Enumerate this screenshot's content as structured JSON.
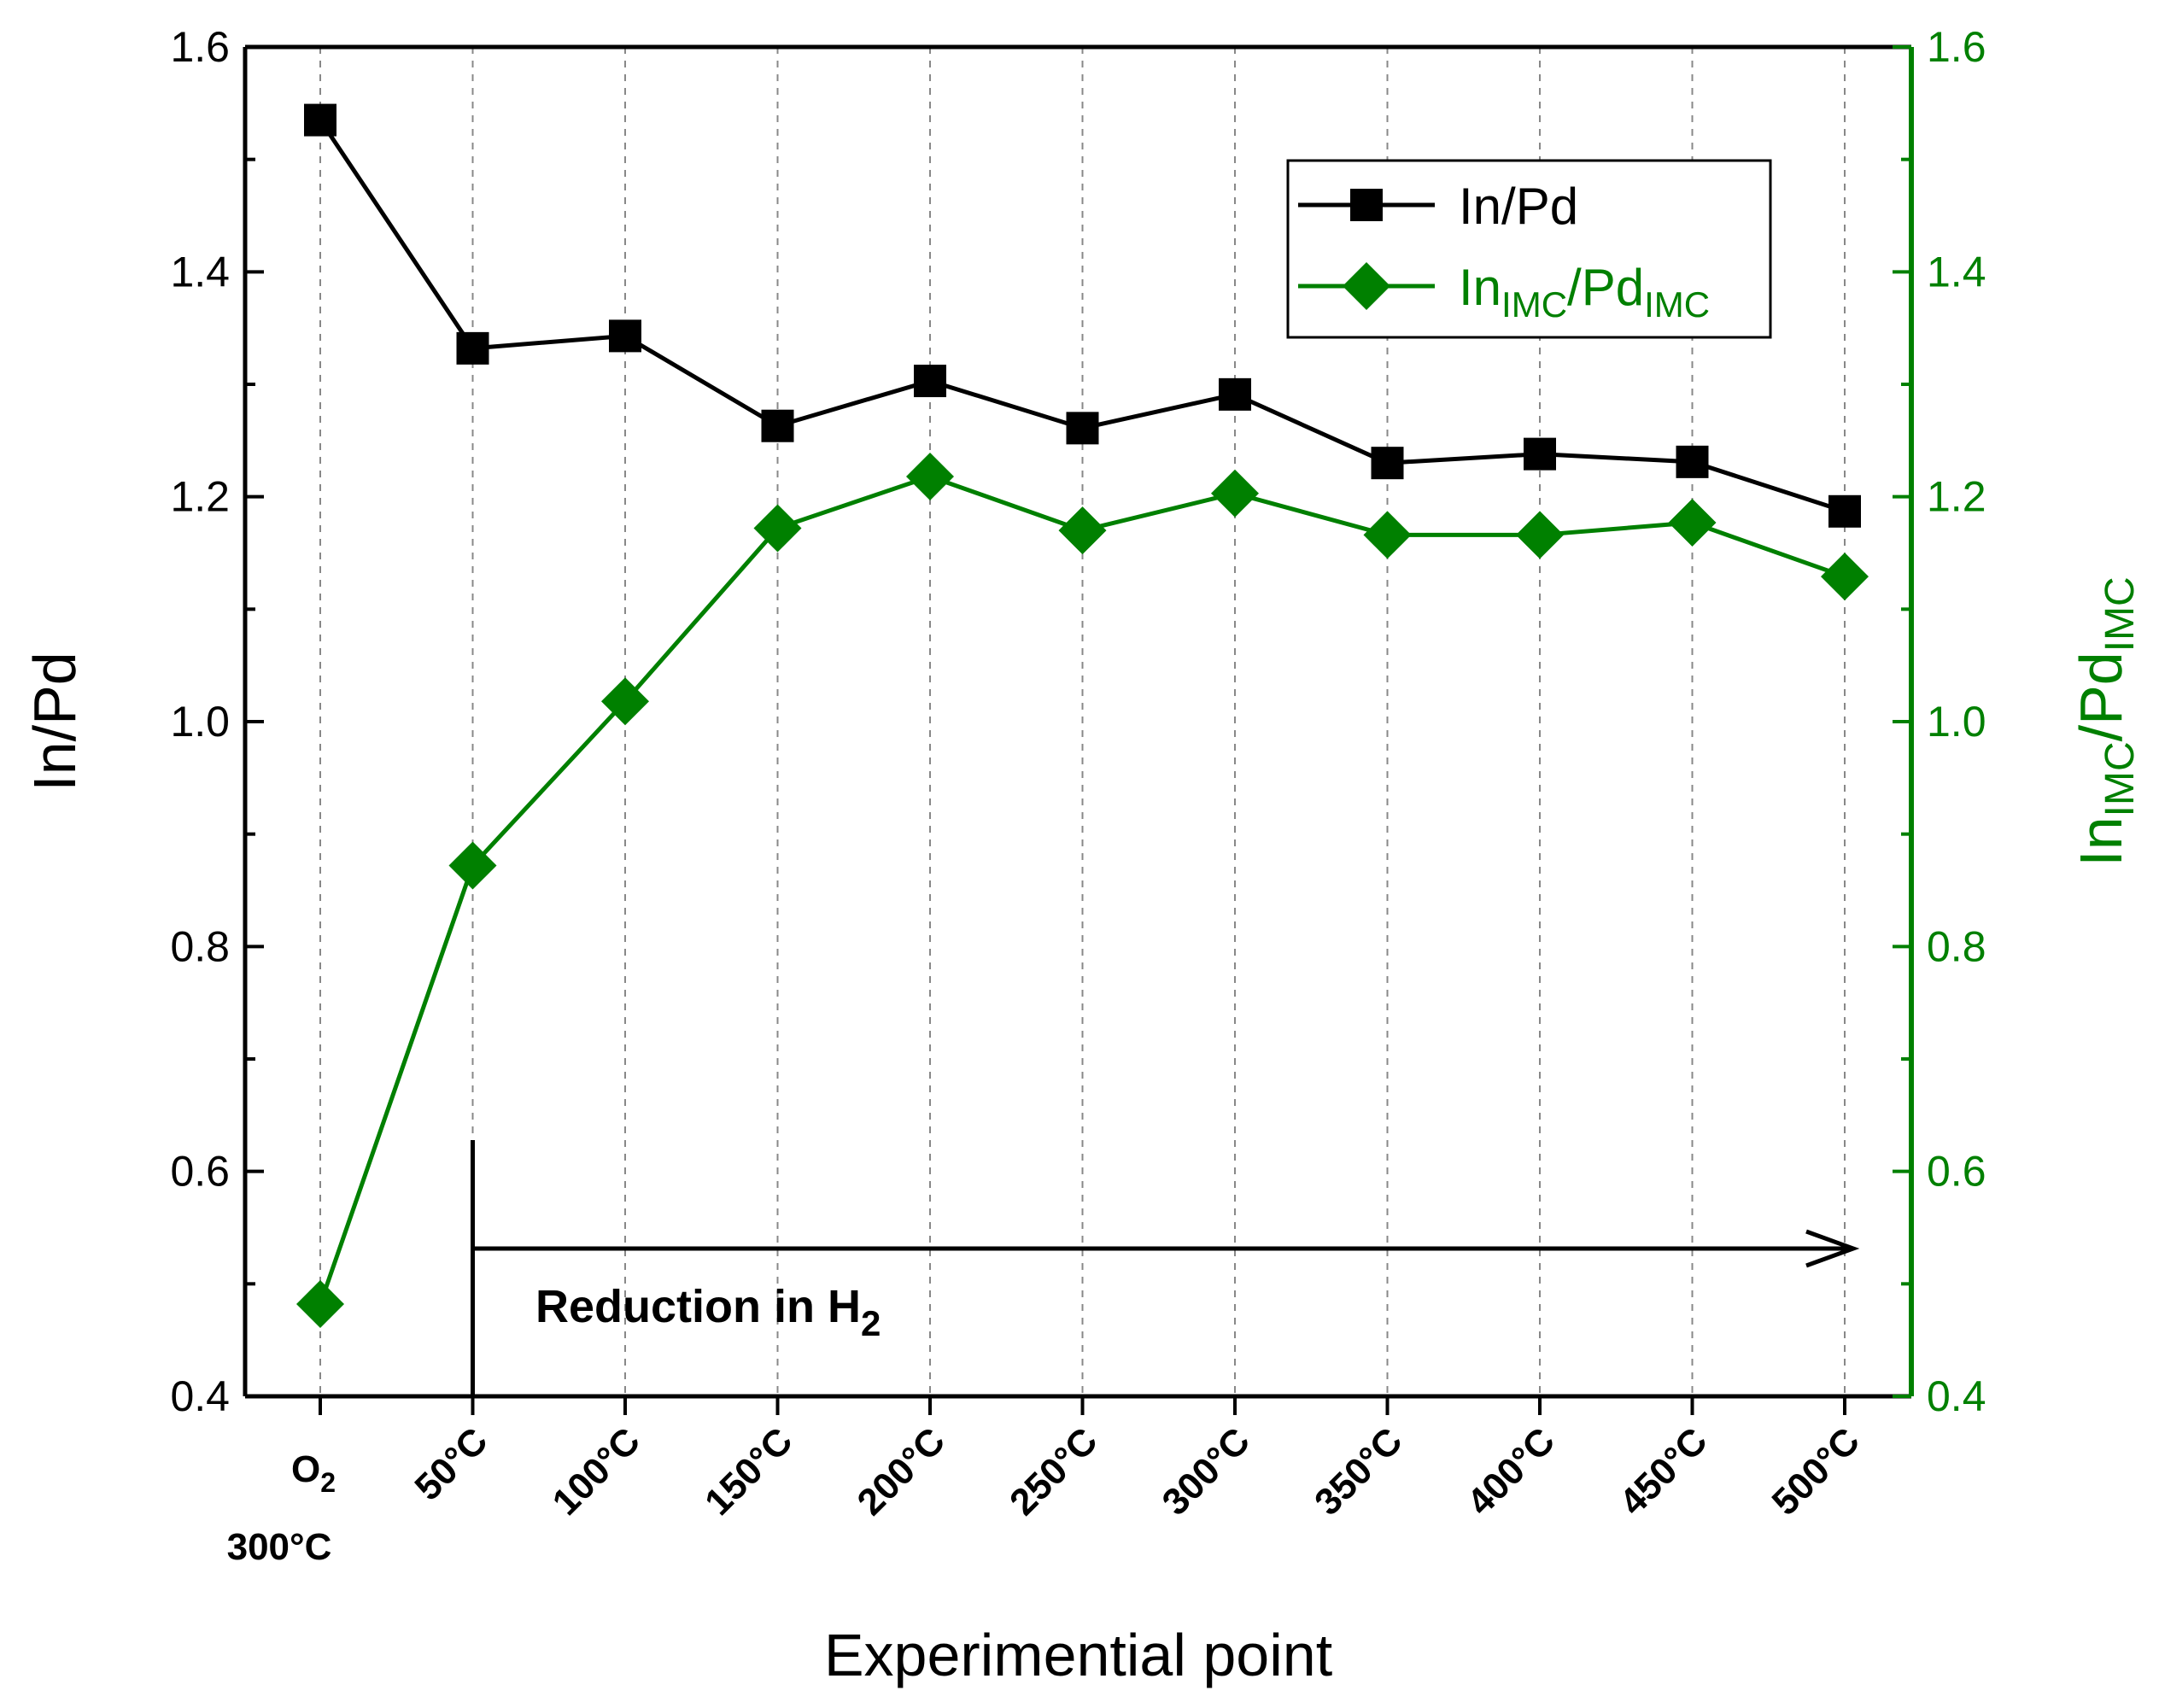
{
  "chart_data": {
    "type": "line",
    "xlabel": "Experimential point",
    "categories": [
      {
        "label": "O₂\n300°C",
        "line1": "O",
        "sub": "2",
        "line2": "300°C"
      },
      {
        "label": "50°C"
      },
      {
        "label": "100°C"
      },
      {
        "label": "150°C"
      },
      {
        "label": "200°C"
      },
      {
        "label": "250°C"
      },
      {
        "label": "300°C"
      },
      {
        "label": "350°C"
      },
      {
        "label": "400°C"
      },
      {
        "label": "450°C"
      },
      {
        "label": "500°C"
      }
    ],
    "y_left": {
      "label": "In/Pd",
      "lim": [
        0.4,
        1.6
      ],
      "ticks": [
        "0.4",
        "0.6",
        "0.8",
        "1.0",
        "1.2",
        "1.4",
        "1.6"
      ]
    },
    "y_right": {
      "label_main": "In",
      "label_sub1": "IMC",
      "label_mid": "/Pd",
      "label_sub2": "IMC",
      "lim": [
        0.4,
        1.6
      ],
      "ticks": [
        "0.4",
        "0.6",
        "0.8",
        "1.0",
        "1.2",
        "1.4",
        "1.6"
      ],
      "color": "#008000"
    },
    "series": [
      {
        "name": "In/Pd",
        "axis": "left",
        "marker": "square",
        "color": "#000000",
        "values": [
          1.535,
          1.332,
          1.343,
          1.263,
          1.303,
          1.261,
          1.291,
          1.23,
          1.238,
          1.231,
          1.187
        ]
      },
      {
        "name": "In_IMC/Pd_IMC",
        "axis": "right",
        "marker": "diamond",
        "color": "#008000",
        "values": [
          0.482,
          0.872,
          1.018,
          1.172,
          1.218,
          1.17,
          1.203,
          1.166,
          1.166,
          1.177,
          1.129
        ]
      }
    ],
    "legend": {
      "position": "top-right",
      "entries": [
        {
          "text": "In/Pd"
        },
        {
          "main": "In",
          "sub1": "IMC",
          "mid": "/Pd",
          "sub2": "IMC"
        }
      ]
    },
    "annotation": {
      "text": "Reduction in H",
      "sub": "2",
      "from_category": 1,
      "to_category": 10
    },
    "grid": "vertical dashed at each category"
  }
}
